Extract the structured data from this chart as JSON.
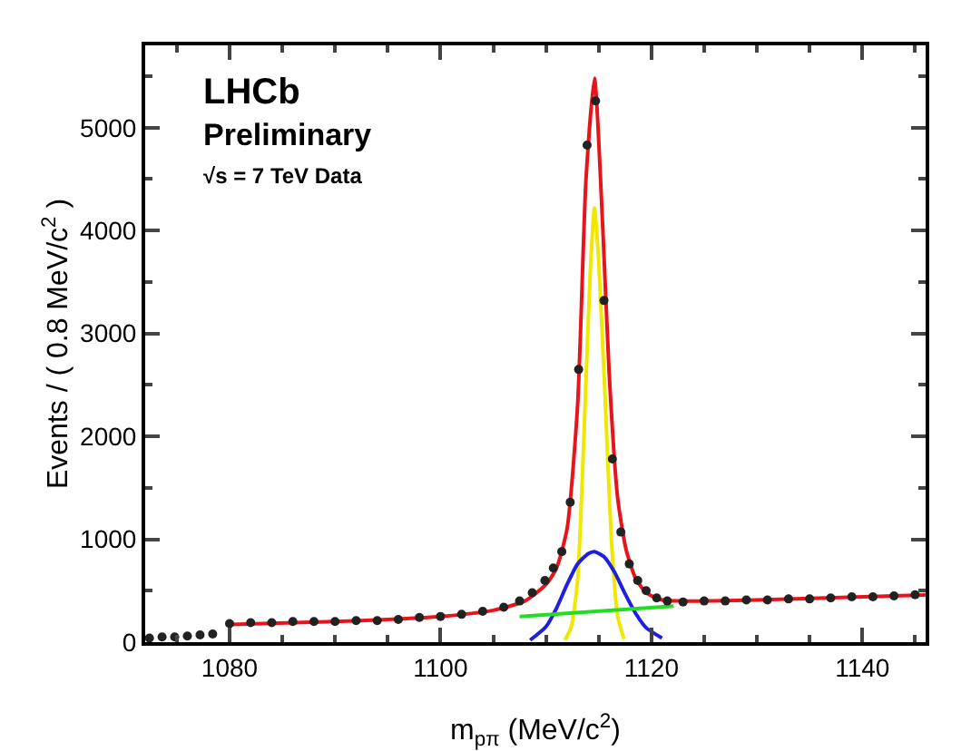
{
  "chart_data": {
    "type": "scatter",
    "xlabel": "m$_{pπ}$ (MeV/c$^{2}$)",
    "ylabel": "Events / ( 0.8 MeV/c$^{2}$ )",
    "annotations": [
      "LHCb",
      "Preliminary",
      "√s = 7 TeV Data"
    ],
    "xlim": [
      1072,
      1146
    ],
    "xticks": [
      1080,
      1100,
      1120,
      1140
    ],
    "ylim": [
      0,
      5800
    ],
    "yticks": [
      0,
      1000,
      2000,
      3000,
      4000,
      5000
    ],
    "grid": false,
    "series": [
      {
        "marker": "circle",
        "color": "#222222",
        "x": [
          1072.4,
          1073.6,
          1074.8,
          1076,
          1077.2,
          1078.4,
          1080,
          1082,
          1084,
          1086,
          1088,
          1090,
          1092,
          1094,
          1096,
          1098,
          1100,
          1102,
          1104,
          1106,
          1107.5,
          1108.7,
          1109.9,
          1110.7,
          1111.5,
          1112.3,
          1113.1,
          1113.9,
          1114.7,
          1115.5,
          1116.3,
          1117.1,
          1117.9,
          1118.7,
          1119.5,
          1120.5,
          1121.5,
          1123,
          1125,
          1127,
          1129,
          1131,
          1133,
          1135,
          1137,
          1139,
          1141,
          1143,
          1145
        ],
        "values": [
          40,
          50,
          50,
          60,
          70,
          80,
          180,
          190,
          190,
          200,
          200,
          200,
          210,
          210,
          220,
          240,
          250,
          270,
          300,
          340,
          400,
          480,
          600,
          720,
          880,
          1360,
          2650,
          4830,
          5260,
          3320,
          1780,
          1070,
          760,
          600,
          500,
          430,
          400,
          390,
          400,
          400,
          410,
          410,
          420,
          420,
          430,
          440,
          440,
          450,
          460
        ]
      },
      {
        "type": "line",
        "marker": "none",
        "color": "#f0e800",
        "x": [
          1111.8,
          1112.4,
          1113,
          1113.6,
          1114.2,
          1114.6,
          1115,
          1115.6,
          1116.2,
          1116.8,
          1117.4
        ],
        "values": [
          20,
          150,
          600,
          2000,
          3600,
          4220,
          3700,
          2400,
          1000,
          250,
          30
        ]
      },
      {
        "type": "line",
        "marker": "none",
        "color": "#1f1fe0",
        "x": [
          1108.5,
          1110,
          1111,
          1112,
          1113,
          1114,
          1114.6,
          1115.5,
          1116.5,
          1117.5,
          1118.5,
          1119.5,
          1121
        ],
        "values": [
          20,
          150,
          330,
          560,
          760,
          860,
          880,
          830,
          680,
          470,
          280,
          140,
          40
        ]
      },
      {
        "type": "line",
        "marker": "none",
        "color": "#22dd22",
        "x": [
          1107.5,
          1122.1
        ],
        "values": [
          250,
          350
        ]
      },
      {
        "type": "line",
        "marker": "none",
        "color": "#e8141b",
        "x": [
          1079.7,
          1090,
          1100,
          1105,
          1108,
          1110,
          1111,
          1112,
          1113,
          1113.8,
          1114.6,
          1115.4,
          1116,
          1116.8,
          1117.6,
          1118.5,
          1119.5,
          1121,
          1122.5,
          1130,
          1146
        ],
        "values": [
          170,
          200,
          250,
          310,
          400,
          560,
          720,
          1100,
          2300,
          4500,
          5480,
          4000,
          2600,
          1400,
          900,
          620,
          480,
          410,
          400,
          410,
          460
        ]
      }
    ]
  }
}
